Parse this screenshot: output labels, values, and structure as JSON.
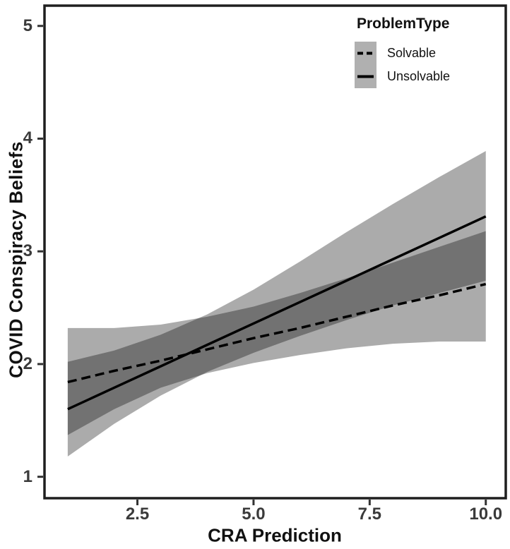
{
  "chart_data": {
    "type": "line",
    "title": "",
    "xlabel": "CRA Prediction",
    "ylabel": "COVID Conspiracy Beliefs",
    "xlim": [
      0.5,
      10.43
    ],
    "ylim": [
      0.81,
      5.18
    ],
    "grid": "off",
    "x_ticks": {
      "values": [
        2.5,
        5.0,
        7.5,
        10.0
      ],
      "labels": [
        "2.5",
        "5.0",
        "7.5",
        "10.0"
      ]
    },
    "y_ticks": {
      "values": [
        1,
        2,
        3,
        4,
        5
      ],
      "labels": [
        "1",
        "2",
        "3",
        "4",
        "5"
      ]
    },
    "legend": {
      "title": "ProblemType",
      "position": "top-right-inside",
      "entries": [
        {
          "label": "Solvable",
          "line_style": "dashed"
        },
        {
          "label": "Unsolvable",
          "line_style": "solid"
        }
      ]
    },
    "x": [
      1,
      2,
      3,
      4,
      5,
      6,
      7,
      8,
      9,
      10
    ],
    "series": [
      {
        "name": "Solvable",
        "line_style": "dashed",
        "values": [
          1.84,
          1.94,
          2.03,
          2.13,
          2.23,
          2.32,
          2.42,
          2.52,
          2.61,
          2.71
        ],
        "ci_upper": [
          2.32,
          2.32,
          2.35,
          2.42,
          2.51,
          2.63,
          2.76,
          2.9,
          3.04,
          3.18
        ],
        "ci_lower": [
          1.37,
          1.6,
          1.79,
          1.92,
          2.01,
          2.08,
          2.14,
          2.18,
          2.2,
          2.2
        ]
      },
      {
        "name": "Unsolvable",
        "line_style": "solid",
        "values": [
          1.6,
          1.79,
          1.98,
          2.17,
          2.36,
          2.55,
          2.74,
          2.93,
          3.12,
          3.31
        ],
        "ci_upper": [
          2.02,
          2.12,
          2.26,
          2.44,
          2.66,
          2.91,
          3.17,
          3.42,
          3.66,
          3.89
        ],
        "ci_lower": [
          1.18,
          1.47,
          1.72,
          1.93,
          2.1,
          2.25,
          2.39,
          2.52,
          2.63,
          2.74
        ]
      }
    ],
    "colors": {
      "line": "#000000",
      "ribbon_fill": "#000000",
      "ribbon_opacity": 0.33,
      "panel_border": "#1f1f1f",
      "tick_mark": "#333333",
      "axis_text": "#3a3a3a",
      "title_text": "#111111",
      "legend_key_fill": "#b0b0b0",
      "background": "#ffffff"
    }
  }
}
